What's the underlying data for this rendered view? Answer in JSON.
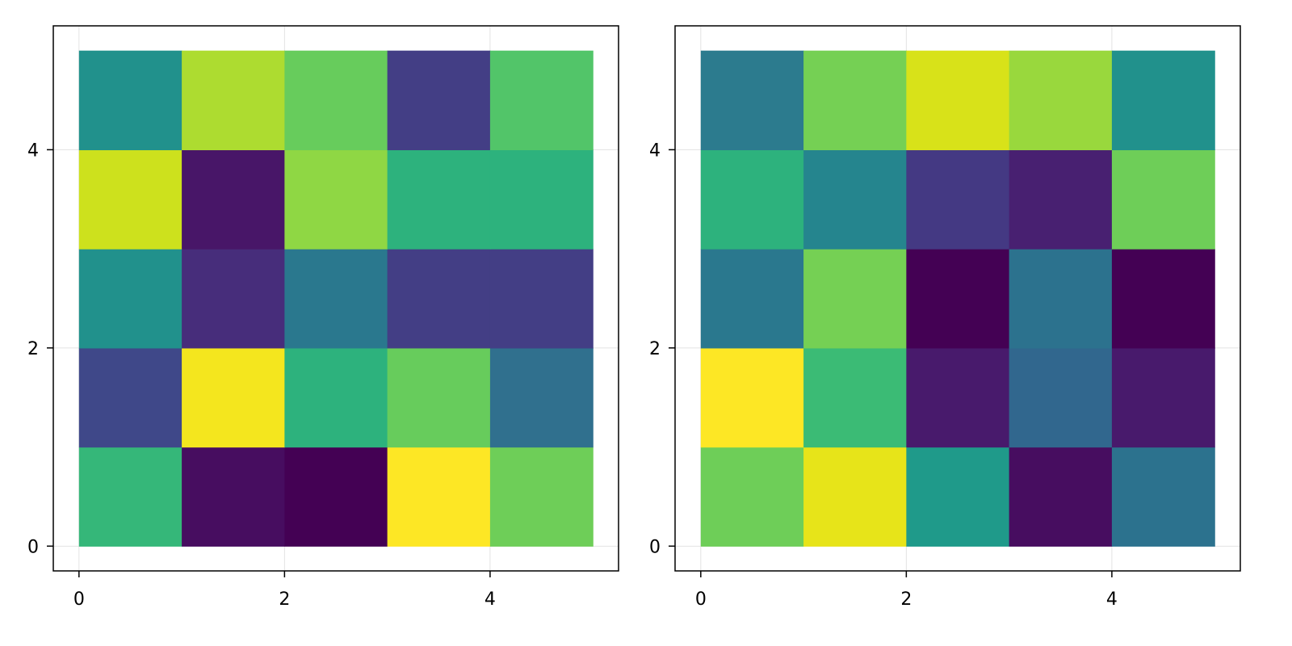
{
  "chart_data": [
    {
      "type": "heatmap",
      "colormap": "viridis",
      "x_edges": [
        0,
        1,
        2,
        3,
        4,
        5
      ],
      "y_edges": [
        0,
        1,
        2,
        3,
        4,
        5
      ],
      "xlim": [
        -0.25,
        5.25
      ],
      "ylim": [
        -0.25,
        5.25
      ],
      "xticks": [
        0,
        2,
        4
      ],
      "yticks": [
        0,
        2,
        4
      ],
      "xtick_labels": [
        "0",
        "2",
        "4"
      ],
      "ytick_labels": [
        "0",
        "2",
        "4"
      ],
      "grid": true,
      "color_values_by_row_bottom_to_top": [
        [
          "#35b779",
          "#470d60",
          "#440154",
          "#fde725",
          "#6ece58"
        ],
        [
          "#3f4889",
          "#f4e61e",
          "#2db27d",
          "#67cc5c",
          "#30708e"
        ],
        [
          "#21918c",
          "#472d7b",
          "#2a788e",
          "#433e85",
          "#433e85"
        ],
        [
          "#cde11d",
          "#481668",
          "#8fd744",
          "#2db27d",
          "#2db27d"
        ],
        [
          "#21918c",
          "#addc30",
          "#67cc5c",
          "#433e85",
          "#52c569"
        ]
      ]
    },
    {
      "type": "heatmap",
      "colormap": "viridis",
      "x_edges": [
        0,
        1,
        2,
        3,
        4,
        5
      ],
      "y_edges": [
        0,
        1,
        2,
        3,
        4,
        5
      ],
      "xlim": [
        -0.25,
        5.25
      ],
      "ylim": [
        -0.25,
        5.25
      ],
      "xticks": [
        0,
        2,
        4
      ],
      "yticks": [
        0,
        2,
        4
      ],
      "xtick_labels": [
        "0",
        "2",
        "4"
      ],
      "ytick_labels": [
        "0",
        "2",
        "4"
      ],
      "grid": true,
      "color_values_by_row_bottom_to_top": [
        [
          "#6ece58",
          "#e7e419",
          "#1f9a8a",
          "#470d60",
          "#2c728e"
        ],
        [
          "#fde725",
          "#3bbb75",
          "#481a6c",
          "#31678e",
          "#481a6c"
        ],
        [
          "#2a788e",
          "#75d054",
          "#440154",
          "#2c728e",
          "#440154"
        ],
        [
          "#2db27d",
          "#25858e",
          "#443983",
          "#482071",
          "#6ece58"
        ],
        [
          "#2c7b8e",
          "#75d054",
          "#d8e219",
          "#99d83d",
          "#21918c"
        ]
      ]
    }
  ]
}
